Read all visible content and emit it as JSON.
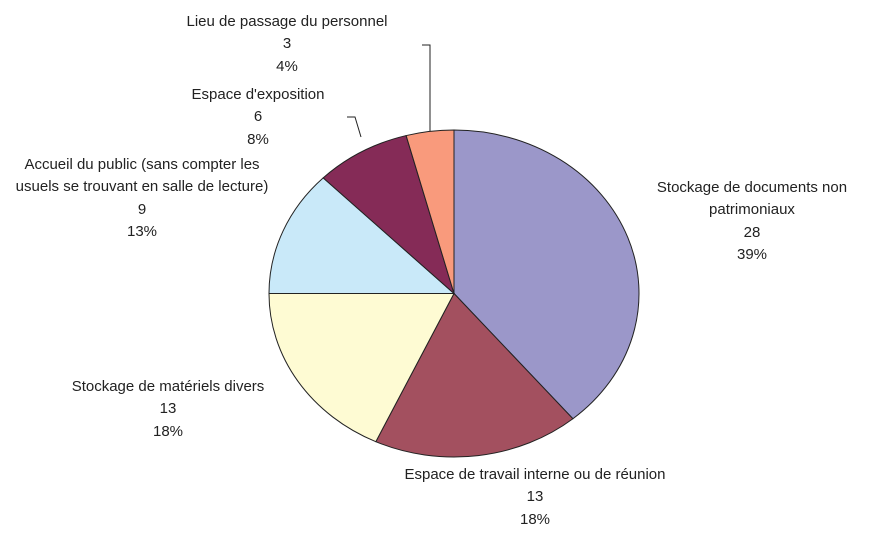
{
  "chart_data": {
    "type": "pie",
    "categories": [
      "Stockage de documents non patrimoniaux",
      "Espace de travail interne ou de réunion",
      "Stockage de matériels divers",
      "Accueil du public (sans compter les usuels se trouvant en salle de lecture)",
      "Espace d'exposition",
      "Lieu de passage du personnel"
    ],
    "values": [
      28,
      13,
      13,
      9,
      6,
      3
    ],
    "percent_labels": [
      "39%",
      "18%",
      "18%",
      "13%",
      "8%",
      "4%"
    ],
    "colors": [
      "#9b97c9",
      "#a3505f",
      "#fefbd3",
      "#c9e9f9",
      "#852b57",
      "#f99a7c"
    ]
  }
}
